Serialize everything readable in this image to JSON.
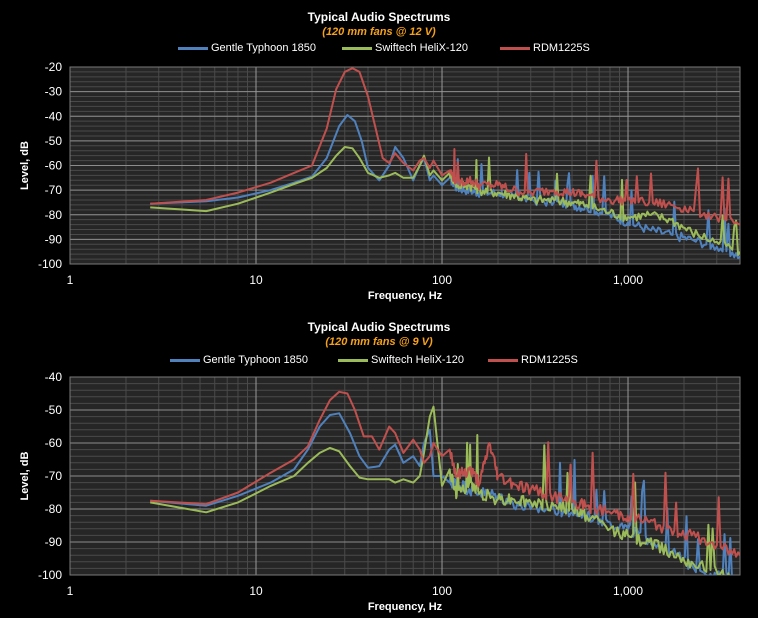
{
  "colors": {
    "gentle_typhoon": "#4f81bd",
    "swiftech": "#9bbb59",
    "rdm": "#c0504d",
    "subtitle": "#f6a11b",
    "plot_bg": "#262626"
  },
  "chart_data": [
    {
      "type": "line",
      "title": "Typical Audio Spectrums",
      "subtitle": "(120 mm fans @ 12 V)",
      "xlabel": "Frequency, Hz",
      "ylabel": "Level, dB",
      "xscale": "log",
      "xlim": [
        1,
        4000
      ],
      "ylim": [
        -100,
        -20
      ],
      "x_ticks": [
        "1",
        "10",
        "100",
        "1,000"
      ],
      "y_ticks": [
        "-20",
        "-30",
        "-40",
        "-50",
        "-60",
        "-70",
        "-80",
        "-90",
        "-100"
      ],
      "legend": "top",
      "grid": true,
      "series": [
        {
          "name": "Gentle Typhoon 1850",
          "color_key": "gentle_typhoon",
          "x": [
            2.7,
            5.4,
            8,
            12,
            16,
            20,
            24,
            28,
            31,
            34,
            37,
            40,
            46,
            52,
            56,
            62,
            70,
            76,
            80,
            86,
            90,
            100,
            110,
            120,
            140,
            160,
            200,
            240,
            300,
            400,
            500,
            600,
            800,
            1000,
            1300,
            1700,
            2200,
            3000,
            4000
          ],
          "y": [
            -75.5,
            -74.5,
            -73,
            -70,
            -67,
            -64.5,
            -57,
            -44,
            -39.5,
            -42,
            -50,
            -61,
            -66,
            -60,
            -52.5,
            -57,
            -66,
            -60,
            -57,
            -66,
            -64,
            -68,
            -65,
            -69,
            -70,
            -71,
            -71,
            -72,
            -74,
            -75,
            -76,
            -77,
            -80,
            -83,
            -86,
            -88,
            -90,
            -93,
            -97
          ]
        },
        {
          "name": "Swiftech HeliX-120",
          "color_key": "swiftech",
          "x": [
            2.7,
            5.4,
            8,
            12,
            16,
            20,
            24,
            27,
            30,
            33,
            36,
            40,
            46,
            52,
            56,
            62,
            70,
            76,
            80,
            86,
            90,
            100,
            110,
            120,
            140,
            160,
            200,
            240,
            300,
            400,
            500,
            600,
            800,
            1000,
            1300,
            1700,
            2200,
            3000,
            4000
          ],
          "y": [
            -77,
            -78.5,
            -75.5,
            -71,
            -67.5,
            -65,
            -61,
            -56,
            -52.5,
            -53,
            -57,
            -63,
            -65,
            -64,
            -63,
            -65,
            -65,
            -60,
            -56,
            -64,
            -62,
            -66,
            -63,
            -68,
            -68,
            -70,
            -71,
            -72,
            -74,
            -74,
            -75,
            -76,
            -79,
            -81,
            -80,
            -82,
            -87,
            -91,
            -95
          ]
        },
        {
          "name": "RDM1225S",
          "color_key": "rdm",
          "x": [
            2.7,
            5.4,
            8,
            12,
            16,
            20,
            24,
            27,
            30,
            33,
            36,
            40,
            44,
            48,
            52,
            56,
            62,
            70,
            76,
            80,
            86,
            90,
            100,
            110,
            120,
            140,
            160,
            200,
            240,
            300,
            400,
            500,
            600,
            800,
            1000,
            1300,
            1700,
            2200,
            3000,
            4000
          ],
          "y": [
            -75.5,
            -74,
            -71,
            -67,
            -63,
            -60,
            -45,
            -29,
            -22,
            -20.5,
            -22,
            -32,
            -45,
            -57,
            -59,
            -55,
            -59,
            -62,
            -58,
            -57,
            -61,
            -58,
            -64,
            -62,
            -67,
            -66,
            -68,
            -68,
            -70,
            -71,
            -70,
            -71,
            -72,
            -74,
            -74,
            -75,
            -76,
            -78,
            -81,
            -84
          ]
        }
      ]
    },
    {
      "type": "line",
      "title": "Typical Audio Spectrums",
      "subtitle": "(120 mm fans @ 9 V)",
      "xlabel": "Frequency, Hz",
      "ylabel": "Level, dB",
      "xscale": "log",
      "xlim": [
        1,
        4000
      ],
      "ylim": [
        -100,
        -40
      ],
      "x_ticks": [
        "1",
        "10",
        "100",
        "1,000"
      ],
      "y_ticks": [
        "-40",
        "-50",
        "-60",
        "-70",
        "-80",
        "-90",
        "-100"
      ],
      "legend": "top",
      "grid": true,
      "series": [
        {
          "name": "Gentle Typhoon 1850",
          "color_key": "gentle_typhoon",
          "x": [
            2.7,
            5.4,
            8,
            12,
            16,
            19,
            22,
            25,
            28,
            32,
            36,
            40,
            46,
            52,
            56,
            62,
            70,
            76,
            80,
            86,
            90,
            100,
            110,
            120,
            140,
            160,
            200,
            240,
            300,
            400,
            500,
            600,
            800,
            1000,
            1300,
            1700,
            2200,
            3000,
            4000
          ],
          "y": [
            -77.5,
            -79,
            -76,
            -72,
            -68,
            -62,
            -55,
            -51.5,
            -51,
            -57,
            -64,
            -67.5,
            -67,
            -62,
            -60.5,
            -66,
            -64,
            -67,
            -60,
            -56,
            -70,
            -70,
            -72,
            -72,
            -74,
            -75,
            -76,
            -78,
            -80,
            -80,
            -81,
            -82,
            -84,
            -86,
            -89,
            -93,
            -97,
            -100,
            -102
          ]
        },
        {
          "name": "Swiftech HeliX-120",
          "color_key": "swiftech",
          "x": [
            2.7,
            5.4,
            8,
            12,
            16,
            19,
            22,
            25,
            28,
            32,
            36,
            40,
            46,
            52,
            56,
            62,
            70,
            76,
            80,
            86,
            90,
            100,
            110,
            120,
            140,
            160,
            200,
            240,
            300,
            400,
            500,
            600,
            800,
            1000,
            1300,
            1700,
            2200,
            3000,
            4000
          ],
          "y": [
            -78,
            -81,
            -78,
            -73,
            -70,
            -66,
            -63,
            -61.5,
            -62.5,
            -67,
            -70.5,
            -71,
            -71,
            -71,
            -72,
            -71,
            -72,
            -70,
            -63,
            -52,
            -49,
            -73,
            -68,
            -76,
            -72,
            -75,
            -77,
            -77,
            -78,
            -79,
            -80,
            -82,
            -86,
            -88,
            -90,
            -93,
            -96,
            -99,
            -102
          ]
        },
        {
          "name": "RDM1225S",
          "color_key": "rdm",
          "x": [
            2.7,
            5.4,
            8,
            12,
            16,
            19,
            22,
            25,
            28,
            31,
            34,
            38,
            42,
            46,
            52,
            56,
            62,
            70,
            76,
            80,
            86,
            90,
            100,
            110,
            120,
            140,
            160,
            180,
            200,
            240,
            300,
            400,
            500,
            600,
            800,
            1000,
            1300,
            1700,
            2200,
            3000,
            4000
          ],
          "y": [
            -77.5,
            -78.5,
            -75,
            -69,
            -65,
            -61,
            -53,
            -47,
            -44.5,
            -45,
            -50,
            -58,
            -58,
            -62,
            -55,
            -57,
            -63,
            -59,
            -62,
            -66,
            -64,
            -60,
            -64,
            -62,
            -70,
            -68,
            -72,
            -60,
            -70,
            -72,
            -74,
            -76,
            -78,
            -79,
            -81,
            -82,
            -84,
            -86,
            -88,
            -91,
            -94
          ]
        }
      ]
    }
  ]
}
